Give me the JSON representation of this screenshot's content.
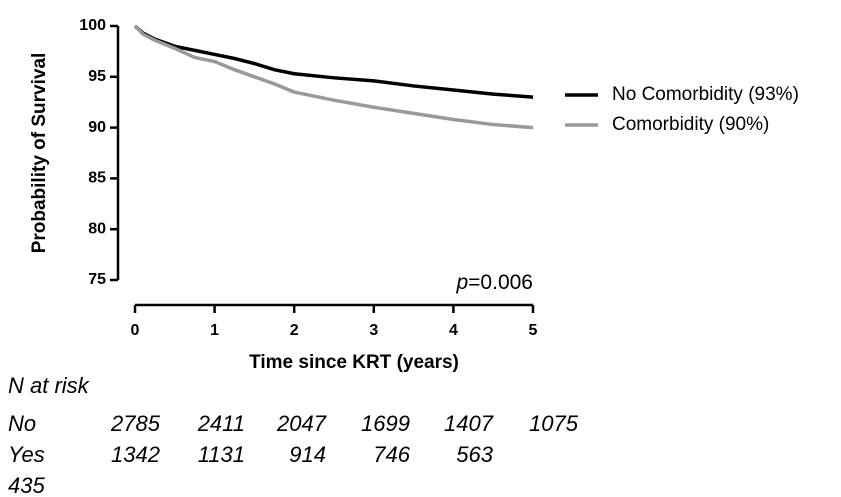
{
  "chart_data": {
    "type": "line",
    "xlabel": "Time since KRT (years)",
    "ylabel": "Probability of Survival",
    "annotation": [
      "p",
      "=0.006"
    ],
    "x": [
      0,
      0.1,
      0.25,
      0.5,
      0.75,
      1,
      1.25,
      1.5,
      1.75,
      2,
      2.5,
      3,
      3.5,
      4,
      4.5,
      5
    ],
    "series": [
      {
        "name": "No Comorbidity (93%)",
        "color": "#000000",
        "values": [
          100,
          99.3,
          98.7,
          98.0,
          97.6,
          97.2,
          96.8,
          96.3,
          95.7,
          95.3,
          94.9,
          94.6,
          94.1,
          93.7,
          93.3,
          93.0
        ]
      },
      {
        "name": "Comorbidity (90%)",
        "color": "#999999",
        "values": [
          100,
          99.2,
          98.6,
          97.8,
          96.9,
          96.5,
          95.7,
          95.0,
          94.3,
          93.5,
          92.7,
          92.0,
          91.4,
          90.8,
          90.3,
          90.0
        ]
      }
    ],
    "xlim": [
      0,
      5
    ],
    "xticks": [
      0,
      1,
      2,
      3,
      4,
      5
    ],
    "ylim": [
      75,
      100
    ],
    "yticks": [
      75,
      80,
      85,
      90,
      95,
      100
    ],
    "risk_table": {
      "title": "N at risk",
      "rows": [
        {
          "label": "No",
          "values": [
            "2785",
            "2411",
            "2047",
            "1699",
            "1407",
            "1075"
          ]
        },
        {
          "label": "Yes",
          "values": [
            "1342",
            "1131",
            "914",
            "746",
            "563",
            "435"
          ]
        }
      ]
    }
  }
}
